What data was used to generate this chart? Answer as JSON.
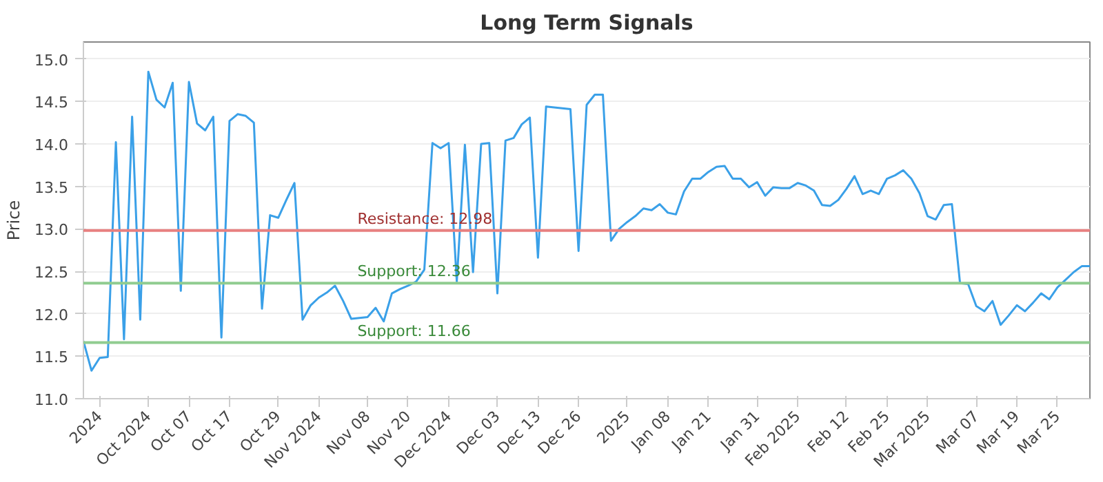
{
  "chart_data": {
    "type": "line",
    "title": "Long Term Signals",
    "ylabel": "Price",
    "categories": [
      null,
      null,
      "2024",
      null,
      null,
      null,
      null,
      null,
      "Oct 2024",
      null,
      null,
      null,
      null,
      "Oct 07",
      null,
      null,
      null,
      null,
      "Oct 17",
      null,
      null,
      null,
      null,
      null,
      "Oct 29",
      null,
      null,
      null,
      null,
      "Nov 2024",
      null,
      null,
      null,
      null,
      null,
      "Nov 08",
      null,
      null,
      null,
      null,
      "Nov 20",
      null,
      null,
      null,
      null,
      "Dec 2024",
      null,
      null,
      null,
      null,
      null,
      "Dec 03",
      null,
      null,
      null,
      null,
      "Dec 13",
      null,
      null,
      null,
      null,
      "Dec 26",
      null,
      null,
      null,
      null,
      null,
      "2025",
      null,
      null,
      null,
      null,
      "Jan 08",
      null,
      null,
      null,
      null,
      "Jan 21",
      null,
      null,
      null,
      null,
      null,
      "Jan 31",
      null,
      null,
      null,
      null,
      "Feb 2025",
      null,
      null,
      null,
      null,
      null,
      "Feb 12",
      null,
      null,
      null,
      null,
      "Feb 25",
      null,
      null,
      null,
      null,
      "Mar 2025",
      null,
      null,
      null,
      null,
      null,
      "Mar 07",
      null,
      null,
      null,
      null,
      "Mar 19",
      null,
      null,
      null,
      null,
      "Mar 25",
      null,
      null,
      null,
      null
    ],
    "series": [
      {
        "color": "#3aa0e8",
        "values": [
          11.68,
          11.33,
          11.48,
          11.49,
          14.02,
          11.7,
          14.32,
          11.93,
          14.85,
          14.52,
          14.43,
          14.72,
          12.27,
          14.73,
          14.24,
          14.16,
          14.32,
          11.72,
          14.27,
          14.35,
          14.33,
          14.25,
          12.06,
          13.16,
          13.13,
          13.34,
          13.54,
          11.93,
          12.1,
          12.19,
          12.25,
          12.33,
          12.15,
          11.94,
          11.95,
          11.96,
          12.07,
          11.91,
          12.24,
          12.29,
          12.33,
          12.38,
          12.52,
          14.01,
          13.95,
          14.01,
          12.38,
          13.99,
          12.49,
          14.0,
          14.01,
          12.24,
          14.04,
          14.07,
          14.23,
          14.31,
          12.66,
          14.44,
          14.43,
          14.42,
          14.41,
          12.74,
          14.46,
          14.58,
          14.58,
          12.86,
          13.0,
          13.08,
          13.15,
          13.24,
          13.22,
          13.29,
          13.19,
          13.17,
          13.44,
          13.59,
          13.59,
          13.67,
          13.73,
          13.74,
          13.59,
          13.59,
          13.49,
          13.55,
          13.39,
          13.49,
          13.48,
          13.48,
          13.54,
          13.51,
          13.45,
          13.28,
          13.27,
          13.34,
          13.47,
          13.62,
          13.41,
          13.45,
          13.41,
          13.59,
          13.63,
          13.69,
          13.59,
          13.42,
          13.15,
          13.11,
          13.28,
          13.29,
          12.36,
          12.35,
          12.09,
          12.03,
          12.15,
          11.87,
          11.98,
          12.1,
          12.03,
          12.13,
          12.24,
          12.17,
          12.31,
          12.4,
          12.49,
          12.56,
          12.56
        ]
      }
    ],
    "ylim": [
      11.0,
      15.2
    ],
    "yticks": [
      {
        "value": 11,
        "label": "11.0"
      },
      11.5,
      {
        "value": 12,
        "label": "12.0"
      },
      12.5,
      {
        "value": 13,
        "label": "13.0"
      },
      13.5,
      {
        "value": 14,
        "label": "14.0"
      },
      14.5,
      {
        "value": 15,
        "label": "15.0"
      }
    ],
    "grid": "y",
    "ref_lines": [
      {
        "axis": "y",
        "value": 12.98,
        "label": "Resistance: 12.98",
        "color": "#e88080"
      },
      {
        "axis": "y",
        "value": 12.36,
        "label": "Support: 12.36",
        "color": "#90cc90"
      },
      {
        "axis": "y",
        "value": 11.66,
        "label": "Support: 11.66",
        "color": "#90cc90"
      }
    ]
  }
}
